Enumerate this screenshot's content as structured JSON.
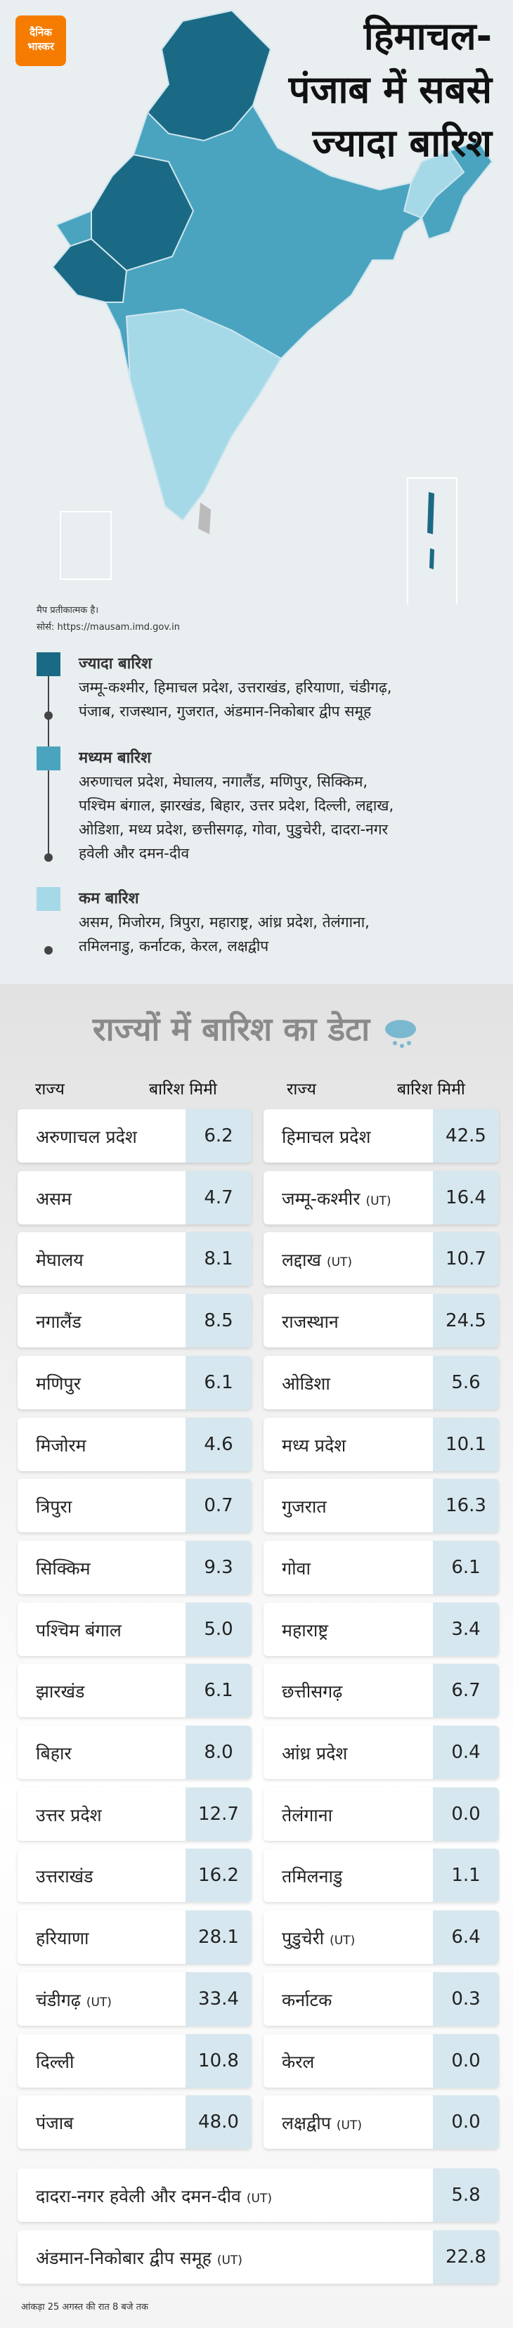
{
  "header": {
    "logo": [
      "दैनिक",
      "भास्कर"
    ],
    "title": [
      "हिमाचल-",
      "पंजाब में सबसे",
      "ज्यादा बारिश"
    ]
  },
  "map_note": "मैप प्रतीकात्मक है।",
  "source": "सोर्स: https://mausam.imd.gov.in",
  "legend": [
    {
      "title": "ज्यादा बारिश",
      "color": "#1b6a85",
      "lines": [
        "जम्मू-कश्मीर, हिमाचल प्रदेश, उत्तराखंड, हरियाणा, चंडीगढ़,",
        "पंजाब, राजस्थान,  गुजरात, अंडमान-निकोबार द्वीप समूह"
      ]
    },
    {
      "title": "मध्यम बारिश",
      "color": "#4aa4c0",
      "lines": [
        "अरुणाचल प्रदेश, मेघालय, नगालैंड, मणिपुर, सिक्किम,",
        "पश्चिम बंगाल, झारखंड, बिहार, उत्तर प्रदेश, दिल्ली, लद्दाख,",
        "ओडिशा, मध्य प्रदेश, छत्तीसगढ़, गोवा, पुडुचेरी, दादरा-नगर",
        "हवेली और दमन-दीव"
      ]
    },
    {
      "title": "कम बारिश",
      "color": "#a6d9e8",
      "lines": [
        "असम, मिजोरम, त्रिपुरा, महाराष्ट्र, आंध्र प्रदेश, तेलंगाना,",
        "तमिलनाडु, कर्नाटक, केरल, लक्षद्वीप"
      ]
    }
  ],
  "table": {
    "title": "राज्यों में बारिश का डेटा",
    "columns": [
      "राज्य",
      "बारिश मिमी"
    ],
    "left": [
      {
        "state": "अरुणाचल प्रदेश",
        "rain": "6.2"
      },
      {
        "state": "असम",
        "rain": "4.7"
      },
      {
        "state": "मेघालय",
        "rain": "8.1"
      },
      {
        "state": "नगालैंड",
        "rain": "8.5"
      },
      {
        "state": "मणिपुर",
        "rain": "6.1"
      },
      {
        "state": "मिजोरम",
        "rain": "4.6"
      },
      {
        "state": "त्रिपुरा",
        "rain": "0.7"
      },
      {
        "state": "सिक्किम",
        "rain": "9.3"
      },
      {
        "state": "पश्चिम बंगाल",
        "rain": "5.0"
      },
      {
        "state": "झारखंड",
        "rain": "6.1"
      },
      {
        "state": "बिहार",
        "rain": "8.0"
      },
      {
        "state": "उत्तर प्रदेश",
        "rain": "12.7"
      },
      {
        "state": "उत्तराखंड",
        "rain": "16.2"
      },
      {
        "state": "हरियाणा",
        "rain": "28.1"
      },
      {
        "state": "चंडीगढ़",
        "tag": "(UT)",
        "rain": "33.4"
      },
      {
        "state": "दिल्ली",
        "rain": "10.8"
      },
      {
        "state": "पंजाब",
        "rain": "48.0"
      }
    ],
    "right": [
      {
        "state": "हिमाचल प्रदेश",
        "rain": "42.5"
      },
      {
        "state": "जम्मू-कश्मीर",
        "tag": "(UT)",
        "rain": "16.4"
      },
      {
        "state": "लद्दाख",
        "tag": "(UT)",
        "rain": "10.7"
      },
      {
        "state": "राजस्थान",
        "rain": "24.5"
      },
      {
        "state": "ओडिशा",
        "rain": "5.6"
      },
      {
        "state": "मध्य प्रदेश",
        "rain": "10.1"
      },
      {
        "state": "गुजरात",
        "rain": "16.3"
      },
      {
        "state": "गोवा",
        "rain": "6.1"
      },
      {
        "state": "महाराष्ट्र",
        "rain": "3.4"
      },
      {
        "state": "छत्तीसगढ़",
        "rain": "6.7"
      },
      {
        "state": "आंध्र प्रदेश",
        "rain": "0.4"
      },
      {
        "state": "तेलंगाना",
        "rain": "0.0"
      },
      {
        "state": "तमिलनाडु",
        "rain": "1.1"
      },
      {
        "state": "पुडुचेरी",
        "tag": "(UT)",
        "rain": "6.4"
      },
      {
        "state": "कर्नाटक",
        "rain": "0.3"
      },
      {
        "state": "केरल",
        "rain": "0.0"
      },
      {
        "state": "लक्षद्वीप",
        "tag": "(UT)",
        "rain": "0.0"
      }
    ],
    "full": [
      {
        "state": "दादरा-नगर हवेली और दमन-दीव",
        "tag": "(UT)",
        "rain": "5.8"
      },
      {
        "state": "अंडमान-निकोबार द्वीप समूह",
        "tag": "(UT)",
        "rain": "22.8"
      }
    ]
  },
  "footer": "आंकड़ा 25 अगस्त की रात 8 बजे तक"
}
